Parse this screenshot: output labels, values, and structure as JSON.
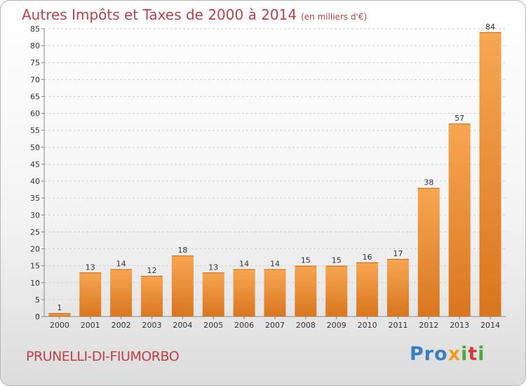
{
  "header": {
    "title": "Autres Impôts et Taxes de 2000 à 2014",
    "unit": "(en milliers d'€)"
  },
  "footer": {
    "commune": "PRUNELLI-DI-FIUMORBO",
    "logo_letters": [
      "P",
      "r",
      "o",
      "x",
      "i",
      "t",
      "i"
    ]
  },
  "colors": {
    "title": "#c0404a",
    "bar_light": "#f7a652",
    "bar_dark": "#d9761f",
    "logo": [
      "#3a7fc4",
      "#3a7fc4",
      "#3a7fc4",
      "#f0a020",
      "#4aa83c",
      "#d83a3a",
      "#4aa83c"
    ]
  },
  "chart_data": {
    "type": "bar",
    "categories": [
      "2000",
      "2001",
      "2002",
      "2003",
      "2004",
      "2005",
      "2006",
      "2007",
      "2008",
      "2009",
      "2010",
      "2011",
      "2012",
      "2013",
      "2014"
    ],
    "values": [
      1,
      13,
      14,
      12,
      18,
      13,
      14,
      14,
      15,
      15,
      16,
      17,
      38,
      57,
      84
    ],
    "title": "Autres Impôts et Taxes de 2000 à 2014",
    "unit": "(en milliers d'€)",
    "ylim": [
      0,
      85
    ],
    "yticks": [
      0,
      5,
      10,
      15,
      20,
      25,
      30,
      35,
      40,
      45,
      50,
      55,
      60,
      65,
      70,
      75,
      80,
      85
    ],
    "grid": true,
    "data_labels": true
  }
}
